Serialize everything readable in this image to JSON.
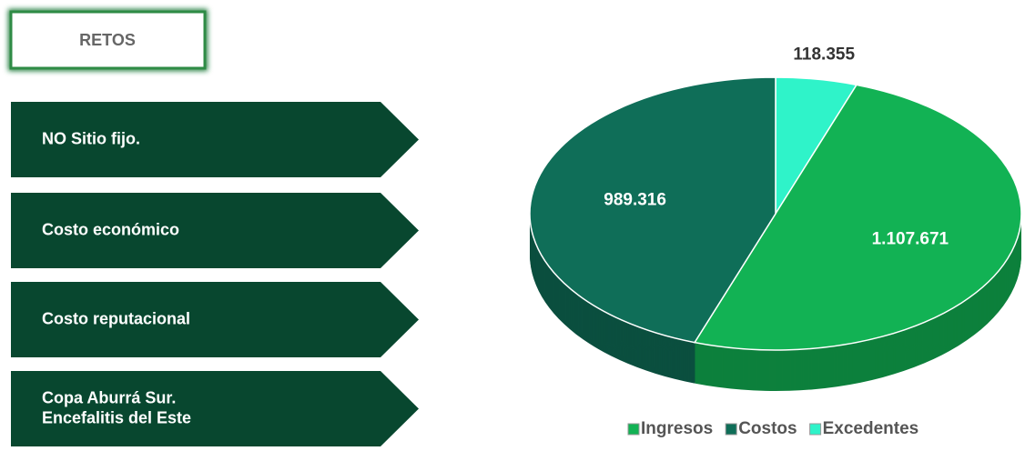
{
  "header": {
    "label": "RETOS"
  },
  "items": [
    [
      "NO Sitio fijo."
    ],
    [
      "Costo económico"
    ],
    [
      "Costo reputacional"
    ],
    [
      "Copa Aburrá Sur.",
      "Encefalitis del Este"
    ]
  ],
  "chart_data": {
    "type": "pie",
    "categories": [
      "Ingresos",
      "Costos",
      "Excedentes"
    ],
    "values": [
      1107671,
      989316,
      118355
    ],
    "value_labels": [
      "1.107.671",
      "989.316",
      "118.355"
    ],
    "colors": [
      "#12b254",
      "#0f6e58",
      "#2ff3c9"
    ],
    "legend": "bottom"
  }
}
